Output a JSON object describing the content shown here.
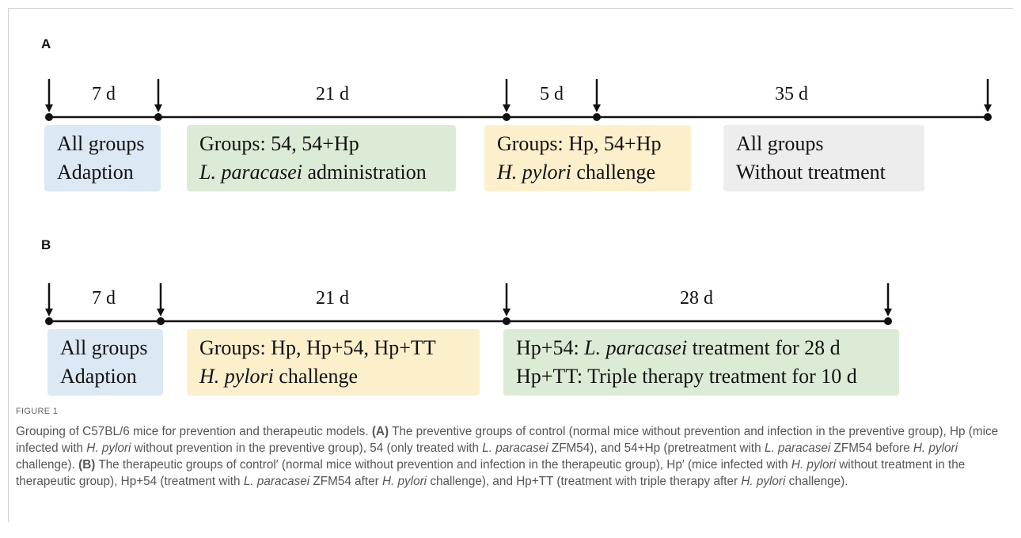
{
  "panels": [
    {
      "label": "A",
      "durations": [
        "7 d",
        "21 d",
        "5 d",
        "35 d"
      ],
      "boxes": [
        {
          "color": "#dce8f4",
          "lines": [
            [
              {
                "text": "All groups"
              }
            ],
            [
              {
                "text": "Adaption"
              }
            ]
          ]
        },
        {
          "color": "#dcebd5",
          "lines": [
            [
              {
                "text": "Groups: 54, 54+Hp"
              }
            ],
            [
              {
                "text": "L. paracasei",
                "style": "italic"
              },
              {
                "text": " administration"
              }
            ]
          ]
        },
        {
          "color": "#fcefcc",
          "lines": [
            [
              {
                "text": "Groups: Hp, 54+Hp"
              }
            ],
            [
              {
                "text": "H. pylori",
                "style": "italic"
              },
              {
                "text": " challenge"
              }
            ]
          ]
        },
        {
          "color": "#ededed",
          "lines": [
            [
              {
                "text": "All groups"
              }
            ],
            [
              {
                "text": "Without treatment"
              }
            ]
          ]
        }
      ]
    },
    {
      "label": "B",
      "durations": [
        "7 d",
        "21 d",
        "28 d"
      ],
      "boxes": [
        {
          "color": "#dce8f4",
          "lines": [
            [
              {
                "text": "All groups"
              }
            ],
            [
              {
                "text": "Adaption"
              }
            ]
          ]
        },
        {
          "color": "#fcefcc",
          "lines": [
            [
              {
                "text": "Groups: Hp, Hp+54, Hp+TT"
              }
            ],
            [
              {
                "text": "H. pylori",
                "style": "italic"
              },
              {
                "text": " challenge"
              }
            ]
          ]
        },
        {
          "color": "#dcebd5",
          "lines": [
            [
              {
                "text": "Hp+54: "
              },
              {
                "text": "L. paracasei",
                "style": "italic"
              },
              {
                "text": " treatment for 28 d"
              }
            ],
            [
              {
                "text": "Hp+TT: Triple therapy treatment for 10 d"
              }
            ]
          ]
        }
      ]
    }
  ],
  "caption": {
    "label": "FIGURE 1",
    "segments": [
      {
        "text": "Grouping of C57BL/6 mice for prevention and therapeutic models. "
      },
      {
        "text": "(A)",
        "style": "bold"
      },
      {
        "text": " The preventive groups of control (normal mice without prevention and infection in the preventive group), Hp (mice infected with "
      },
      {
        "text": "H. pylori",
        "style": "italic"
      },
      {
        "text": " without prevention in the preventive group), 54 (only treated with "
      },
      {
        "text": "L. paracasei",
        "style": "italic"
      },
      {
        "text": " ZFM54), and 54+Hp (pretreatment with "
      },
      {
        "text": "L. paracasei",
        "style": "italic"
      },
      {
        "text": " ZFM54 before "
      },
      {
        "text": "H. pylori",
        "style": "italic"
      },
      {
        "text": " challenge). "
      },
      {
        "text": "(B)",
        "style": "bold"
      },
      {
        "text": " The therapeutic groups of control′ (normal mice without prevention and infection in the therapeutic group), Hp′ (mice infected with "
      },
      {
        "text": "H. pylori",
        "style": "italic"
      },
      {
        "text": " without treatment in the therapeutic group), Hp+54 (treatment with "
      },
      {
        "text": "L. paracasei",
        "style": "italic"
      },
      {
        "text": " ZFM54 after "
      },
      {
        "text": "H. pylori",
        "style": "italic"
      },
      {
        "text": " challenge), and Hp+TT (treatment with triple therapy after "
      },
      {
        "text": "H. pylori",
        "style": "italic"
      },
      {
        "text": " challenge)."
      }
    ]
  }
}
